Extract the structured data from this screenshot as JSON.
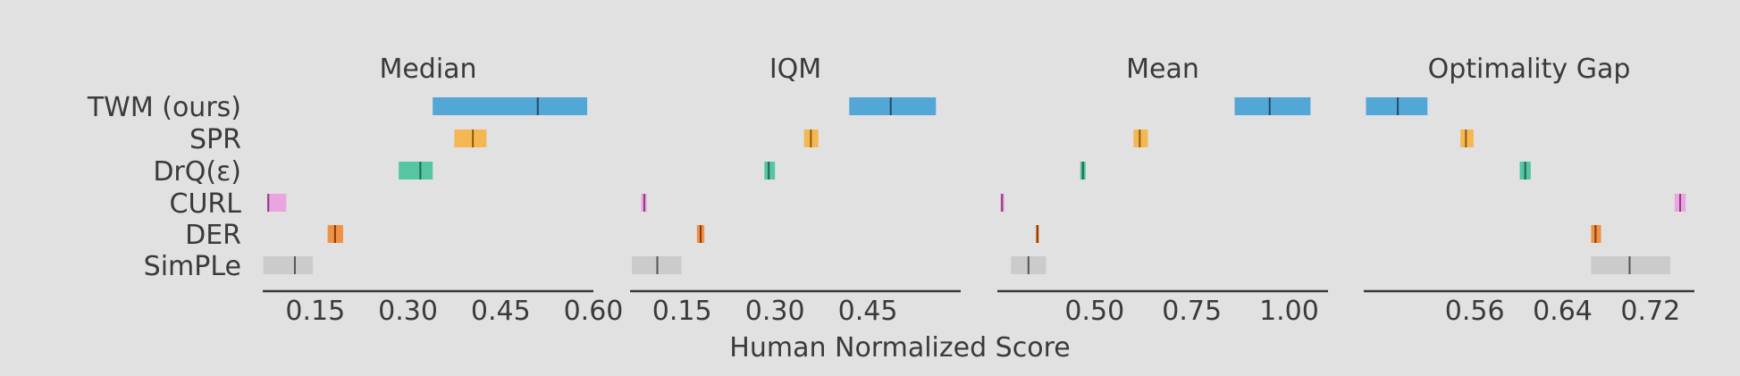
{
  "chart_data": {
    "type": "interval",
    "xlabel": "Human Normalized Score",
    "methods": [
      "TWM (ours)",
      "SPR",
      "DrQ(ε)",
      "CURL",
      "DER",
      "SimPLe"
    ],
    "colors": {
      "TWM (ours)": "#4aa3d6",
      "SPR": "#f5b44a",
      "DrQ(ε)": "#4dc3a0",
      "CURL": "#eaa0de",
      "DER": "#ef8c3e",
      "SimPLe": "#c9c9c9"
    },
    "median_colors": {
      "TWM (ours)": "#1d4d6b",
      "SPR": "#8a5a12",
      "DrQ(ε)": "#1c6651",
      "CURL": "#8a3d7d",
      "DER": "#8a3a08",
      "SimPLe": "#555555"
    },
    "panels": [
      {
        "title": "Median",
        "xlim": [
          0.065,
          0.6
        ],
        "ticks": [
          0.15,
          0.3,
          0.45,
          0.6
        ],
        "tick_labels": [
          "0.15",
          "0.30",
          "0.45",
          "0.60"
        ],
        "intervals": {
          "TWM (ours)": [
            0.34,
            0.59,
            0.51
          ],
          "SPR": [
            0.375,
            0.427,
            0.405
          ],
          "DrQ(ε)": [
            0.285,
            0.34,
            0.32
          ],
          "CURL": [
            0.072,
            0.103,
            0.074
          ],
          "DER": [
            0.17,
            0.195,
            0.182
          ],
          "SimPLe": [
            0.066,
            0.146,
            0.117
          ]
        }
      },
      {
        "title": "IQM",
        "xlim": [
          0.066,
          0.6
        ],
        "ticks": [
          0.15,
          0.3,
          0.45
        ],
        "tick_labels": [
          "0.15",
          "0.30",
          "0.45"
        ],
        "intervals": {
          "TWM (ours)": [
            0.42,
            0.56,
            0.487
          ],
          "SPR": [
            0.347,
            0.37,
            0.358
          ],
          "DrQ(ε)": [
            0.283,
            0.3,
            0.29
          ],
          "CURL": [
            0.084,
            0.093,
            0.089
          ],
          "DER": [
            0.174,
            0.186,
            0.18
          ],
          "SimPLe": [
            0.069,
            0.149,
            0.11
          ]
        }
      },
      {
        "title": "Mean",
        "xlim": [
          0.25,
          1.1
        ],
        "ticks": [
          0.5,
          0.75,
          1.0
        ],
        "tick_labels": [
          "0.50",
          "0.75",
          "1.00"
        ],
        "intervals": {
          "TWM (ours)": [
            0.86,
            1.055,
            0.95
          ],
          "SPR": [
            0.6,
            0.637,
            0.616
          ],
          "DrQ(ε)": [
            0.463,
            0.477,
            0.47
          ],
          "CURL": [
            0.258,
            0.268,
            0.262
          ],
          "DER": [
            0.349,
            0.357,
            0.353
          ],
          "SimPLe": [
            0.285,
            0.375,
            0.33
          ]
        }
      },
      {
        "title": "Optimality Gap",
        "xlim": [
          0.459,
          0.76
        ],
        "ticks": [
          0.56,
          0.64,
          0.72
        ],
        "tick_labels": [
          "0.56",
          "0.64",
          "0.72"
        ],
        "intervals": {
          "TWM (ours)": [
            0.461,
            0.517,
            0.49
          ],
          "SPR": [
            0.547,
            0.559,
            0.552
          ],
          "DrQ(ε)": [
            0.601,
            0.611,
            0.606
          ],
          "CURL": [
            0.742,
            0.752,
            0.747
          ],
          "DER": [
            0.666,
            0.675,
            0.67
          ],
          "SimPLe": [
            0.666,
            0.738,
            0.701
          ]
        }
      }
    ]
  }
}
